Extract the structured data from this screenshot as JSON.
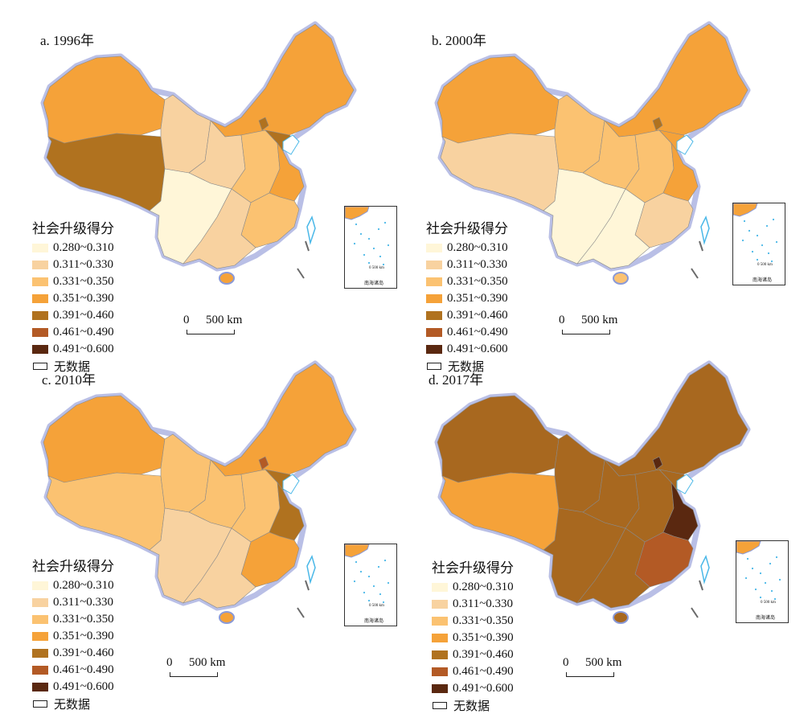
{
  "panels": [
    {
      "title": "a. 1996年",
      "fills": {
        "xj": "#f5a239",
        "tibet": "#b0721f",
        "nw": "#f8d2a0",
        "west": "#f8d2a0",
        "center": "#fbc271",
        "ne": "#f5a239",
        "south": "#f8d2a0",
        "sw": "#fff6d8",
        "coastA": "#f5a239",
        "coastB": "#fbc271",
        "hainan": "#f5a239",
        "hebei": "#b0721f",
        "beijing": "#b0721f"
      }
    },
    {
      "title": "b. 2000年",
      "fills": {
        "xj": "#f5a239",
        "tibet": "#f8d2a0",
        "nw": "#fbc271",
        "west": "#fbc271",
        "center": "#fbc271",
        "ne": "#f5a239",
        "south": "#fff6d8",
        "sw": "#fff6d8",
        "coastA": "#f5a239",
        "coastB": "#f8d2a0",
        "hainan": "#fbc271",
        "hebei": "#f5a239",
        "beijing": "#b0721f"
      }
    },
    {
      "title": "c. 2010年",
      "fills": {
        "xj": "#f5a239",
        "tibet": "#fbc271",
        "nw": "#fbc271",
        "west": "#fbc271",
        "center": "#fbc271",
        "ne": "#f5a239",
        "south": "#f8d2a0",
        "sw": "#f8d2a0",
        "coastA": "#b0721f",
        "coastB": "#f5a239",
        "hainan": "#f5a239",
        "hebei": "#b0721f",
        "beijing": "#b35a25"
      }
    },
    {
      "title": "d. 2017年",
      "fills": {
        "xj": "#a8681f",
        "tibet": "#f5a239",
        "nw": "#a8681f",
        "west": "#a8681f",
        "center": "#a8681f",
        "ne": "#a8681f",
        "south": "#a8681f",
        "sw": "#a8681f",
        "coastA": "#5a2810",
        "coastB": "#b35a25",
        "hainan": "#a8681f",
        "hebei": "#a8681f",
        "beijing": "#5a2810"
      }
    }
  ],
  "legend": {
    "title": "社会升级得分",
    "classes": [
      {
        "label": "0.280~0.310",
        "color": "#fff6d8"
      },
      {
        "label": "0.311~0.330",
        "color": "#f8d2a0"
      },
      {
        "label": "0.331~0.350",
        "color": "#fbc271"
      },
      {
        "label": "0.351~0.390",
        "color": "#f5a239"
      },
      {
        "label": "0.391~0.460",
        "color": "#b0721f"
      },
      {
        "label": "0.461~0.490",
        "color": "#b35a25"
      },
      {
        "label": "0.491~0.600",
        "color": "#5a2810"
      }
    ],
    "no_data_label": "无数据"
  },
  "scale": {
    "zero": "0",
    "label": "500 km"
  },
  "inset": {
    "scale_label": "0 500 km",
    "caption": "南海诸岛"
  }
}
